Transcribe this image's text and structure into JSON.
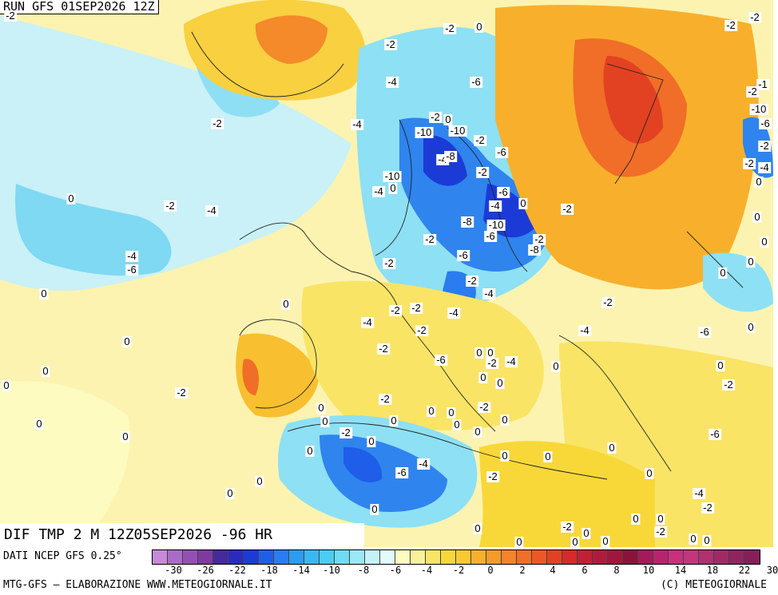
{
  "header": {
    "run_title": "RUN GFS 01SEP2026 12Z"
  },
  "field_title": "DIF TMP 2 M 12Z05SEP2026 -96 HR",
  "footer": {
    "source": "DATI NCEP GFS 0.25°",
    "credit": "MTG-GFS — ELABORAZIONE WWW.METEOGIORNALE.IT",
    "copyright": "(C) METEOGIORNALE"
  },
  "colorbar": {
    "colors": [
      "#c58bd6",
      "#a86cc7",
      "#9350b4",
      "#7e3aa1",
      "#442a9c",
      "#2b2ac0",
      "#1c3bd6",
      "#1f5ee8",
      "#2a7cf0",
      "#2c9cf0",
      "#3ab7f2",
      "#4acdf2",
      "#6edcf2",
      "#9ae8f6",
      "#c4f2f8",
      "#e2fafa",
      "#fdfbc0",
      "#fbf09a",
      "#fae466",
      "#f8d838",
      "#fac832",
      "#f8b02c",
      "#f69a2a",
      "#f4842a",
      "#f06e28",
      "#ec5824",
      "#e24222",
      "#d42a2a",
      "#c21f36",
      "#b01a3c",
      "#a0163c",
      "#8c1238",
      "#a41a5a",
      "#b8246c",
      "#c8307c",
      "#c2367e",
      "#b03070",
      "#a02a66",
      "#902460",
      "#861e58"
    ],
    "tick_labels": [
      "-30",
      "-26",
      "-22",
      "-18",
      "-14",
      "-10",
      "-8",
      "-6",
      "-4",
      "-2",
      "0",
      "2",
      "4",
      "6",
      "8",
      "10",
      "14",
      "18",
      "22",
      "30"
    ]
  },
  "map": {
    "labels": [
      {
        "text": "-2"
      },
      {
        "text": "-2"
      },
      {
        "text": "-2"
      },
      {
        "text": "0"
      },
      {
        "text": "-4"
      },
      {
        "text": "-6"
      },
      {
        "text": "-2"
      },
      {
        "text": "-4"
      },
      {
        "text": "-2"
      },
      {
        "text": "0"
      },
      {
        "text": "-10"
      },
      {
        "text": "-10"
      },
      {
        "text": "-2"
      },
      {
        "text": "-4"
      },
      {
        "text": "-8"
      },
      {
        "text": "-6"
      },
      {
        "text": "-10"
      },
      {
        "text": "-2"
      },
      {
        "text": "0"
      },
      {
        "text": "-4"
      },
      {
        "text": "-6"
      },
      {
        "text": "-4"
      },
      {
        "text": "0"
      },
      {
        "text": "-2"
      },
      {
        "text": "-8"
      },
      {
        "text": "-6"
      },
      {
        "text": "-10"
      },
      {
        "text": "0"
      },
      {
        "text": "-2"
      },
      {
        "text": "-4"
      },
      {
        "text": "-2"
      },
      {
        "text": "-2"
      },
      {
        "text": "-8"
      },
      {
        "text": "-4"
      },
      {
        "text": "-6"
      },
      {
        "text": "-2"
      },
      {
        "text": "-6"
      },
      {
        "text": "-2"
      },
      {
        "text": "-4"
      },
      {
        "text": "-2"
      },
      {
        "text": "-2"
      },
      {
        "text": "-4"
      },
      {
        "text": "-2"
      },
      {
        "text": "-4"
      },
      {
        "text": "-2"
      },
      {
        "text": "0"
      },
      {
        "text": "0"
      },
      {
        "text": "-2"
      },
      {
        "text": "-4"
      },
      {
        "text": "-6"
      },
      {
        "text": "0"
      },
      {
        "text": "0"
      },
      {
        "text": "0"
      },
      {
        "text": "-2"
      },
      {
        "text": "0"
      },
      {
        "text": "0"
      },
      {
        "text": "0"
      },
      {
        "text": "0"
      },
      {
        "text": "0"
      },
      {
        "text": "0"
      },
      {
        "text": "0"
      },
      {
        "text": "0"
      },
      {
        "text": "0"
      },
      {
        "text": "0"
      },
      {
        "text": "0"
      },
      {
        "text": "-2"
      },
      {
        "text": "0"
      },
      {
        "text": "0"
      },
      {
        "text": "0"
      },
      {
        "text": "-4"
      },
      {
        "text": "-2"
      },
      {
        "text": "0"
      },
      {
        "text": "0"
      },
      {
        "text": "-6"
      },
      {
        "text": "-2"
      },
      {
        "text": "0"
      },
      {
        "text": "0"
      },
      {
        "text": "-2"
      },
      {
        "text": "0"
      },
      {
        "text": "0"
      },
      {
        "text": "-4"
      },
      {
        "text": "-6"
      },
      {
        "text": "0"
      },
      {
        "text": "-2"
      },
      {
        "text": "0"
      },
      {
        "text": "0"
      },
      {
        "text": "0"
      },
      {
        "text": "-4"
      },
      {
        "text": "-2"
      },
      {
        "text": "0"
      },
      {
        "text": "0"
      },
      {
        "text": "0"
      },
      {
        "text": "-2"
      },
      {
        "text": "-6"
      },
      {
        "text": "-2"
      },
      {
        "text": "-1"
      },
      {
        "text": "-10"
      },
      {
        "text": "-6"
      },
      {
        "text": "-2"
      },
      {
        "text": "-4"
      },
      {
        "text": "0"
      },
      {
        "text": "-2"
      },
      {
        "text": "-2"
      },
      {
        "text": "-2"
      },
      {
        "text": "0"
      },
      {
        "text": "0"
      },
      {
        "text": "0"
      },
      {
        "text": "0"
      },
      {
        "text": "0"
      },
      {
        "text": "0"
      },
      {
        "text": "-2"
      },
      {
        "text": "0"
      },
      {
        "text": "0"
      },
      {
        "text": "0"
      },
      {
        "text": "0"
      },
      {
        "text": "-2"
      },
      {
        "text": "0"
      },
      {
        "text": "0"
      }
    ]
  }
}
